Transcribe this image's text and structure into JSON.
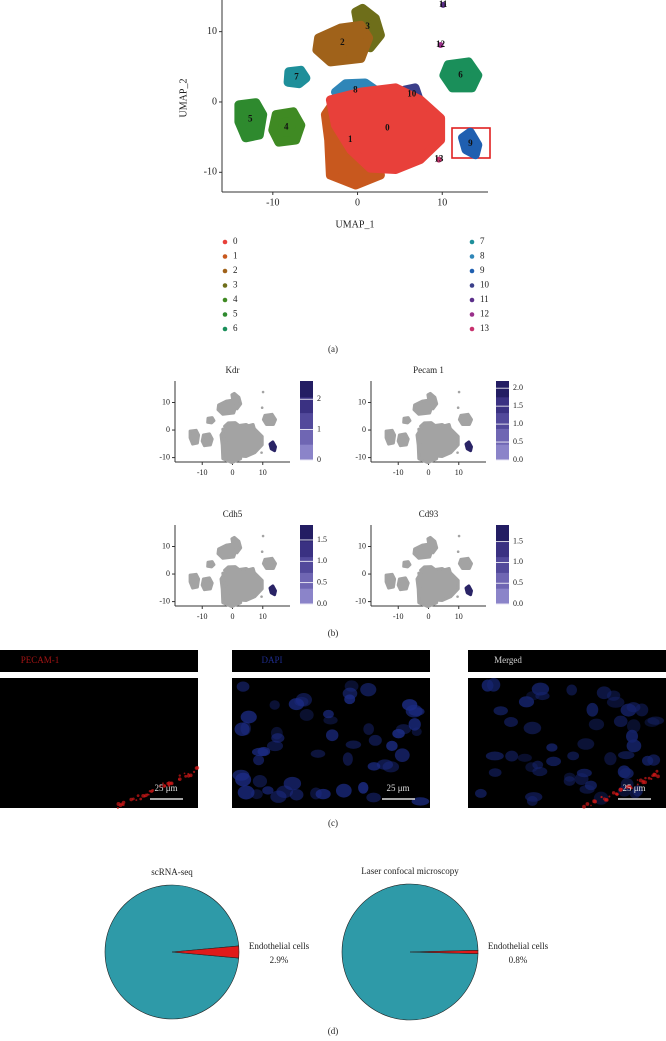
{
  "chart_data": [
    {
      "type": "scatter",
      "xlabel": "UMAP_1",
      "ylabel": "UMAP_2",
      "xlim": [
        -16,
        15.4
      ],
      "ylim": [
        -12.8,
        14.5
      ],
      "xticks": [
        -10,
        0,
        10
      ],
      "yticks": [
        -10,
        0,
        10
      ],
      "series": [
        {
          "name": "0",
          "color": "#e8403a",
          "x": [
            -3.2,
            0.4,
            4.5,
            7.4,
            9.8,
            9.8,
            7.4,
            4.5,
            1.5,
            -0.8,
            -2.6
          ],
          "values": [
            0.3,
            1.4,
            2.0,
            0.3,
            -2.3,
            -5.4,
            -8.2,
            -9.6,
            -9.4,
            -6.8,
            -3.3
          ]
        },
        {
          "name": "1",
          "color": "#c8581e",
          "x": [
            -2.6,
            -0.2,
            0.9,
            2.1,
            2.7,
            -0.2,
            -3.2,
            -3.4,
            -3.8
          ],
          "values": [
            0.3,
            0.3,
            -2.5,
            -6.8,
            -10.4,
            -11.8,
            -10.4,
            -5.4,
            -1.8
          ]
        },
        {
          "name": "2",
          "color": "#a0621a",
          "x": [
            -4.6,
            -2.0,
            0.4,
            1.3,
            0.4,
            -3.2,
            -4.8
          ],
          "values": [
            9.1,
            10.5,
            10.9,
            9.1,
            6.2,
            5.7,
            7.4
          ]
        },
        {
          "name": "3",
          "color": "#6e6e1a",
          "x": [
            -0.2,
            0.6,
            2.1,
            2.7,
            1.5,
            0.4
          ],
          "values": [
            12.8,
            13.3,
            11.9,
            9.5,
            7.7,
            8.8
          ]
        },
        {
          "name": "4",
          "color": "#3f8a23",
          "x": [
            -9.6,
            -7.6,
            -6.7,
            -7.3,
            -9.3,
            -10.0
          ],
          "values": [
            -1.8,
            -1.4,
            -3.3,
            -5.4,
            -5.7,
            -4.0
          ]
        },
        {
          "name": "5",
          "color": "#2e8a2e",
          "x": [
            -14.0,
            -12.0,
            -11.2,
            -11.6,
            -13.2,
            -14.0
          ],
          "values": [
            -0.4,
            -0.1,
            -1.8,
            -4.7,
            -5.1,
            -2.8
          ]
        },
        {
          "name": "6",
          "color": "#1a8f5a",
          "x": [
            10.7,
            13.1,
            14.2,
            13.5,
            11.2,
            10.2
          ],
          "values": [
            5.3,
            5.7,
            3.8,
            2.0,
            2.0,
            3.8
          ]
        },
        {
          "name": "7",
          "color": "#1e8f9a",
          "x": [
            -8.1,
            -6.7,
            -6.1,
            -6.9,
            -8.2
          ],
          "values": [
            4.3,
            4.5,
            3.4,
            2.6,
            2.8
          ]
        },
        {
          "name": "8",
          "color": "#2f86b8",
          "x": [
            -2.6,
            -1.4,
            0.9,
            2.1,
            0.9,
            -1.4
          ],
          "values": [
            1.4,
            2.6,
            2.7,
            1.7,
            0.9,
            0.7
          ]
        },
        {
          "name": "9",
          "color": "#1f5fb0",
          "x": [
            12.4,
            13.3,
            14.2,
            13.9,
            12.8
          ],
          "values": [
            -5.1,
            -4.3,
            -6.1,
            -7.5,
            -6.8
          ]
        },
        {
          "name": "10",
          "color": "#3b3f8a",
          "x": [
            5.6,
            6.8,
            7.2,
            6.0
          ],
          "values": [
            1.7,
            2.0,
            0.6,
            0.0
          ]
        },
        {
          "name": "11",
          "color": "#5b2f8a",
          "x": [
            10.1
          ],
          "values": [
            13.8
          ]
        },
        {
          "name": "12",
          "color": "#9a2f8a",
          "x": [
            9.8
          ],
          "values": [
            8.1
          ]
        },
        {
          "name": "13",
          "color": "#c8326e",
          "x": [
            9.6
          ],
          "values": [
            -8.2
          ]
        }
      ]
    },
    {
      "type": "feature",
      "title": "Kdr",
      "xlim": [
        -19,
        19
      ],
      "ylim": [
        -11.6,
        17.8
      ],
      "xticks": [
        -10,
        0,
        10
      ],
      "yticks": [
        -10,
        0,
        10
      ],
      "colorbar_lim": [
        0,
        2.6
      ],
      "colorbar_ticks": [
        0,
        1,
        2
      ]
    },
    {
      "type": "feature",
      "title": "Pecam 1",
      "xlim": [
        -19,
        19
      ],
      "ylim": [
        -11.6,
        17.8
      ],
      "xticks": [
        -10,
        0,
        10
      ],
      "yticks": [
        -10,
        0,
        10
      ],
      "colorbar_lim": [
        0,
        2.2
      ],
      "colorbar_ticks": [
        {
          "value": 0,
          "label": "0.0"
        },
        0.5,
        {
          "value": 1,
          "label": "1.0"
        },
        1.5,
        {
          "value": 2,
          "label": "2.0"
        }
      ]
    },
    {
      "type": "feature",
      "title": "Cdh5",
      "xlim": [
        -19,
        19
      ],
      "ylim": [
        -11.6,
        17.8
      ],
      "xticks": [
        -10,
        0,
        10
      ],
      "yticks": [
        -10,
        0,
        10
      ],
      "colorbar_lim": [
        0,
        1.85
      ],
      "colorbar_ticks": [
        {
          "value": 0,
          "label": "0.0"
        },
        0.5,
        {
          "value": 1,
          "label": "1.0"
        },
        1.5
      ]
    },
    {
      "type": "feature",
      "title": "Cd93",
      "xlim": [
        -19,
        19
      ],
      "ylim": [
        -11.6,
        17.8
      ],
      "xticks": [
        -10,
        0,
        10
      ],
      "yticks": [
        -10,
        0,
        10
      ],
      "colorbar_lim": [
        0,
        1.9
      ],
      "colorbar_ticks": [
        {
          "value": 0,
          "label": "0.0"
        },
        0.5,
        {
          "value": 1,
          "label": "1.0"
        },
        1.5
      ]
    },
    {
      "type": "pie",
      "title": "scRNA-seq",
      "categories": [
        null,
        "Endothelial cells"
      ],
      "values": [
        97.1,
        2.9
      ],
      "value_labels": [
        null,
        "2.9%"
      ],
      "colors": [
        "#2e9aa8",
        "#e01a1a"
      ]
    },
    {
      "type": "pie",
      "title": "Laser confocal microscopy",
      "categories": [
        null,
        "Endothelial cells"
      ],
      "values": [
        99.2,
        0.8
      ],
      "value_labels": [
        null,
        "0.8%"
      ],
      "colors": [
        "#2e9aa8",
        "#e01a1a"
      ]
    }
  ],
  "images": [
    {
      "label": "PECAM-1",
      "scale_bar": "25 μm"
    },
    {
      "label": "DAPI",
      "scale_bar": "25 μm"
    },
    {
      "label": "Merged",
      "scale_bar": "25 μm"
    }
  ],
  "panel_labels": [
    "(a)",
    "(b)",
    "(c)",
    "(d)"
  ]
}
